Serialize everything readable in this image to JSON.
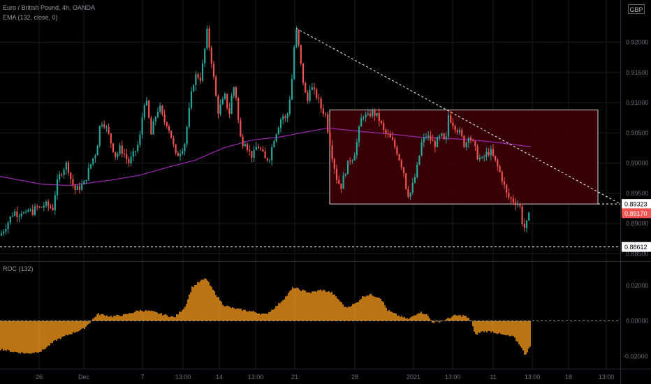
{
  "legend": {
    "symbol": "Euro / British Pound, 4h, OANDA",
    "ema": "EMA (132, close, 0)",
    "roc": "ROC (132)"
  },
  "currency_badge": "GBP",
  "colors": {
    "background": "#000000",
    "up": "#26a69a",
    "down": "#ef5350",
    "ema": "#9c27b0",
    "roc": "#e8901a",
    "grid": "#1c1c22",
    "rect_fill": "#3d0008",
    "last_price": "#f05350"
  },
  "chart_data": [
    {
      "type": "candlestick",
      "series": [
        {
          "name": "Euro / British Pound, 4h, OANDA",
          "close_path": [
            [
              0,
              0.888
            ],
            [
              8,
              0.8895
            ],
            [
              14,
              0.8908
            ],
            [
              20,
              0.892
            ],
            [
              26,
              0.8915
            ],
            [
              32,
              0.8922
            ],
            [
              36,
              0.891
            ],
            [
              40,
              0.8922
            ],
            [
              46,
              0.8918
            ],
            [
              52,
              0.8927
            ],
            [
              58,
              0.8925
            ],
            [
              64,
              0.8932
            ],
            [
              70,
              0.8928
            ],
            [
              76,
              0.8925
            ],
            [
              80,
              0.896
            ],
            [
              84,
              0.8975
            ],
            [
              90,
              0.899
            ],
            [
              96,
              0.9
            ],
            [
              102,
              0.897
            ],
            [
              108,
              0.8955
            ],
            [
              114,
              0.896
            ],
            [
              120,
              0.8965
            ],
            [
              126,
              0.8985
            ],
            [
              132,
              0.9005
            ],
            [
              138,
              0.902
            ],
            [
              144,
              0.907
            ],
            [
              150,
              0.9065
            ],
            [
              156,
              0.9045
            ],
            [
              160,
              0.903
            ],
            [
              166,
              0.901
            ],
            [
              172,
              0.9025
            ],
            [
              178,
              0.9015
            ],
            [
              184,
              0.9
            ],
            [
              190,
              0.9012
            ],
            [
              196,
              0.9025
            ],
            [
              200,
              0.904
            ],
            [
              204,
              0.908
            ],
            [
              208,
              0.911
            ],
            [
              212,
              0.9085
            ],
            [
              216,
              0.9045
            ],
            [
              222,
              0.9075
            ],
            [
              228,
              0.9095
            ],
            [
              234,
              0.907
            ],
            [
              240,
              0.9065
            ],
            [
              246,
              0.904
            ],
            [
              252,
              0.901
            ],
            [
              258,
              0.902
            ],
            [
              264,
              0.903
            ],
            [
              270,
              0.908
            ],
            [
              276,
              0.913
            ],
            [
              282,
              0.915
            ],
            [
              286,
              0.9135
            ],
            [
              292,
              0.9175
            ],
            [
              296,
              0.922
            ],
            [
              300,
              0.919
            ],
            [
              304,
              0.916
            ],
            [
              308,
              0.912
            ],
            [
              312,
              0.9085
            ],
            [
              318,
              0.91
            ],
            [
              322,
              0.911
            ],
            [
              328,
              0.908
            ],
            [
              334,
              0.913
            ],
            [
              338,
              0.911
            ],
            [
              342,
              0.906
            ],
            [
              346,
              0.903
            ],
            [
              350,
              0.904
            ],
            [
              356,
              0.902
            ],
            [
              362,
              0.901
            ],
            [
              368,
              0.903
            ],
            [
              374,
              0.902
            ],
            [
              380,
              0.9005
            ],
            [
              386,
              0.901
            ],
            [
              392,
              0.904
            ],
            [
              398,
              0.906
            ],
            [
              404,
              0.908
            ],
            [
              410,
              0.907
            ],
            [
              414,
              0.91
            ],
            [
              418,
              0.914
            ],
            [
              420,
              0.918
            ],
            [
              424,
              0.922
            ],
            [
              428,
              0.919
            ],
            [
              432,
              0.915
            ],
            [
              436,
              0.912
            ],
            [
              440,
              0.91
            ],
            [
              444,
              0.913
            ],
            [
              448,
              0.912
            ],
            [
              454,
              0.911
            ],
            [
              460,
              0.909
            ],
            [
              466,
              0.908
            ],
            [
              470,
              0.905
            ],
            [
              476,
              0.901
            ],
            [
              482,
              0.8975
            ],
            [
              488,
              0.896
            ],
            [
              494,
              0.8985
            ],
            [
              500,
              0.9005
            ],
            [
              506,
              0.901
            ],
            [
              512,
              0.904
            ],
            [
              516,
              0.907
            ],
            [
              520,
              0.908
            ],
            [
              526,
              0.9075
            ],
            [
              532,
              0.9085
            ],
            [
              538,
              0.908
            ],
            [
              544,
              0.907
            ],
            [
              550,
              0.905
            ],
            [
              556,
              0.9045
            ],
            [
              562,
              0.9035
            ],
            [
              568,
              0.902
            ],
            [
              574,
              0.9
            ],
            [
              578,
              0.8985
            ],
            [
              582,
              0.8955
            ],
            [
              586,
              0.8945
            ],
            [
              590,
              0.896
            ],
            [
              596,
              0.8985
            ],
            [
              600,
              0.901
            ],
            [
              604,
              0.9035
            ],
            [
              610,
              0.9045
            ],
            [
              616,
              0.904
            ],
            [
              622,
              0.903
            ],
            [
              628,
              0.904
            ],
            [
              632,
              0.9045
            ],
            [
              638,
              0.903
            ],
            [
              642,
              0.908
            ],
            [
              646,
              0.907
            ],
            [
              652,
              0.906
            ],
            [
              658,
              0.905
            ],
            [
              662,
              0.904
            ],
            [
              666,
              0.9025
            ],
            [
              670,
              0.905
            ],
            [
              674,
              0.904
            ],
            [
              678,
              0.903
            ],
            [
              684,
              0.901
            ],
            [
              690,
              0.9005
            ],
            [
              696,
              0.9015
            ],
            [
              702,
              0.902
            ],
            [
              708,
              0.9005
            ],
            [
              714,
              0.899
            ],
            [
              720,
              0.897
            ],
            [
              726,
              0.8945
            ],
            [
              732,
              0.894
            ],
            [
              738,
              0.8935
            ],
            [
              744,
              0.893
            ],
            [
              748,
              0.89
            ],
            [
              752,
              0.889
            ],
            [
              756,
              0.891
            ],
            [
              760,
              0.8917
            ]
          ]
        },
        {
          "name": "EMA (132, close, 0)",
          "path": [
            [
              0,
              0.8978
            ],
            [
              60,
              0.8965
            ],
            [
              100,
              0.8963
            ],
            [
              160,
              0.8972
            ],
            [
              200,
              0.898
            ],
            [
              240,
              0.8993
            ],
            [
              280,
              0.9005
            ],
            [
              320,
              0.9025
            ],
            [
              360,
              0.9038
            ],
            [
              400,
              0.9043
            ],
            [
              440,
              0.9052
            ],
            [
              470,
              0.9058
            ],
            [
              510,
              0.9053
            ],
            [
              560,
              0.9048
            ],
            [
              600,
              0.9043
            ],
            [
              640,
              0.9041
            ],
            [
              680,
              0.9038
            ],
            [
              720,
              0.9033
            ],
            [
              760,
              0.9027
            ]
          ]
        }
      ],
      "y_axis": {
        "ticks": [
          0.92,
          0.915,
          0.91,
          0.905,
          0.9,
          0.895,
          0.89,
          0.885
        ],
        "labels": [
          "0.92000",
          "0.91500",
          "0.91000",
          "0.90500",
          "0.90000",
          "0.89500",
          "0.89000",
          "0.88500"
        ],
        "range": [
          0.884,
          0.927
        ]
      },
      "price_labels": [
        {
          "value": 0.89323,
          "label": "0.89323"
        },
        {
          "value": 0.8917,
          "label": "0.89170"
        },
        {
          "value": 0.88612,
          "label": "0.88612"
        }
      ],
      "rectangle": {
        "x_from": 472,
        "x_to": 856,
        "y_from": 0.89323,
        "y_to": 0.9088
      },
      "trendline": {
        "from": [
          424,
          0.9223
        ],
        "to": [
          888,
          0.89323
        ]
      },
      "horizontal_line": {
        "value": 0.88612
      }
    },
    {
      "type": "bar",
      "series": [
        {
          "name": "ROC (132)",
          "path": [
            [
              0,
              -0.016
            ],
            [
              20,
              -0.0175
            ],
            [
              40,
              -0.0185
            ],
            [
              60,
              -0.017
            ],
            [
              80,
              -0.011
            ],
            [
              100,
              -0.0075
            ],
            [
              120,
              -0.0045
            ],
            [
              140,
              0.004
            ],
            [
              160,
              0.0025
            ],
            [
              180,
              0.0035
            ],
            [
              200,
              0.006
            ],
            [
              215,
              0.0055
            ],
            [
              230,
              0.004
            ],
            [
              250,
              0.002
            ],
            [
              265,
              0.008
            ],
            [
              275,
              0.019
            ],
            [
              285,
              0.022
            ],
            [
              295,
              0.024
            ],
            [
              305,
              0.0175
            ],
            [
              320,
              0.009
            ],
            [
              335,
              0.007
            ],
            [
              350,
              0.006
            ],
            [
              365,
              0.005
            ],
            [
              380,
              0.0035
            ],
            [
              395,
              0.008
            ],
            [
              410,
              0.014
            ],
            [
              420,
              0.019
            ],
            [
              430,
              0.0175
            ],
            [
              445,
              0.016
            ],
            [
              460,
              0.0175
            ],
            [
              475,
              0.016
            ],
            [
              485,
              0.012
            ],
            [
              495,
              0.0075
            ],
            [
              510,
              0.01
            ],
            [
              520,
              0.014
            ],
            [
              530,
              0.015
            ],
            [
              545,
              0.013
            ],
            [
              555,
              0.006
            ],
            [
              570,
              0.003
            ],
            [
              585,
              0.001
            ],
            [
              600,
              0.005
            ],
            [
              610,
              0.004
            ],
            [
              620,
              -0.001
            ],
            [
              635,
              0.0
            ],
            [
              650,
              0.003
            ],
            [
              665,
              0.003
            ],
            [
              675,
              0.0
            ],
            [
              680,
              -0.008
            ],
            [
              690,
              -0.006
            ],
            [
              705,
              -0.006
            ],
            [
              720,
              -0.008
            ],
            [
              735,
              -0.009
            ],
            [
              745,
              -0.014
            ],
            [
              752,
              -0.0195
            ],
            [
              758,
              -0.015
            ]
          ]
        }
      ],
      "y_axis": {
        "ticks": [
          0.02,
          0.0,
          -0.02
        ],
        "labels": [
          "0.02000",
          "0.00000",
          "-0.02000"
        ],
        "range": [
          -0.027,
          0.033
        ]
      },
      "zero_line": 0.0
    }
  ],
  "x_axis": {
    "ticks": [
      {
        "x": 56,
        "label": "26"
      },
      {
        "x": 120,
        "label": "Dec"
      },
      {
        "x": 204,
        "label": "7"
      },
      {
        "x": 262,
        "label": "13:00"
      },
      {
        "x": 314,
        "label": "14"
      },
      {
        "x": 366,
        "label": "13:00"
      },
      {
        "x": 422,
        "label": "21"
      },
      {
        "x": 508,
        "label": "28"
      },
      {
        "x": 592,
        "label": "2021"
      },
      {
        "x": 648,
        "label": "13:00"
      },
      {
        "x": 706,
        "label": "11"
      },
      {
        "x": 762,
        "label": "13:00"
      },
      {
        "x": 814,
        "label": "18"
      },
      {
        "x": 868,
        "label": "13:00"
      }
    ]
  }
}
